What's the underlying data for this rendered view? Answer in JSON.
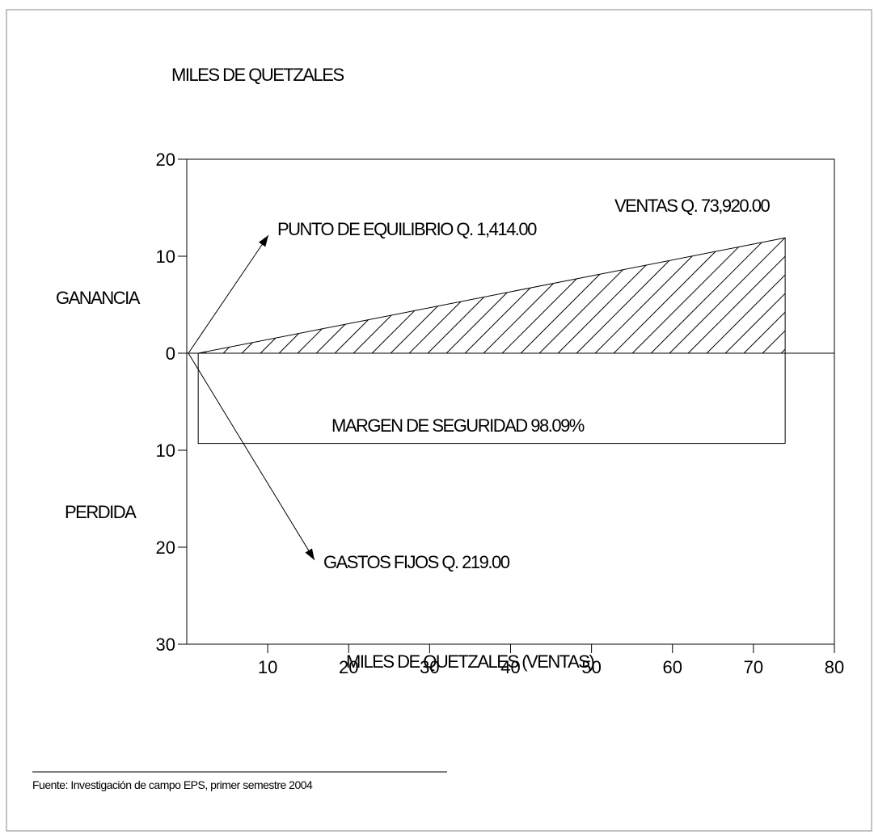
{
  "chart_data": {
    "type": "line",
    "y_unit_label": "MILES DE QUETZALES",
    "xlabel": "MILES DE QUETZALES (VENTAS)",
    "xlim": [
      0,
      80
    ],
    "ylim": [
      -30,
      20
    ],
    "x_ticks": [
      "10",
      "20",
      "30",
      "40",
      "50",
      "60",
      "70",
      "80"
    ],
    "y_ticks": [
      {
        "value": 20,
        "label": "20"
      },
      {
        "value": 10,
        "label": "10"
      },
      {
        "value": 0,
        "label": "0"
      },
      {
        "value": -10,
        "label": "10"
      },
      {
        "value": -20,
        "label": "20"
      },
      {
        "value": -30,
        "label": "30"
      }
    ],
    "region_labels": {
      "gain": "GANANCIA",
      "loss": "PERDIDA"
    },
    "profit_line": {
      "x": [
        1.414,
        73.92
      ],
      "y": [
        0,
        11.9
      ]
    },
    "safety_margin": {
      "x": [
        1.414,
        73.92
      ],
      "y": [
        0,
        -9.3
      ]
    },
    "annotations": {
      "ventas": "VENTAS Q. 73,920.00",
      "punto_equilibrio": "PUNTO DE EQUILIBRIO Q. 1,414.00",
      "margen": "MARGEN DE SEGURIDAD 98.09%",
      "gastos_fijos": "GASTOS FIJOS Q. 219.00"
    },
    "grid": false,
    "grid_color": "#000000"
  },
  "source_note": "Fuente: Investigación de campo EPS, primer semestre 2004"
}
